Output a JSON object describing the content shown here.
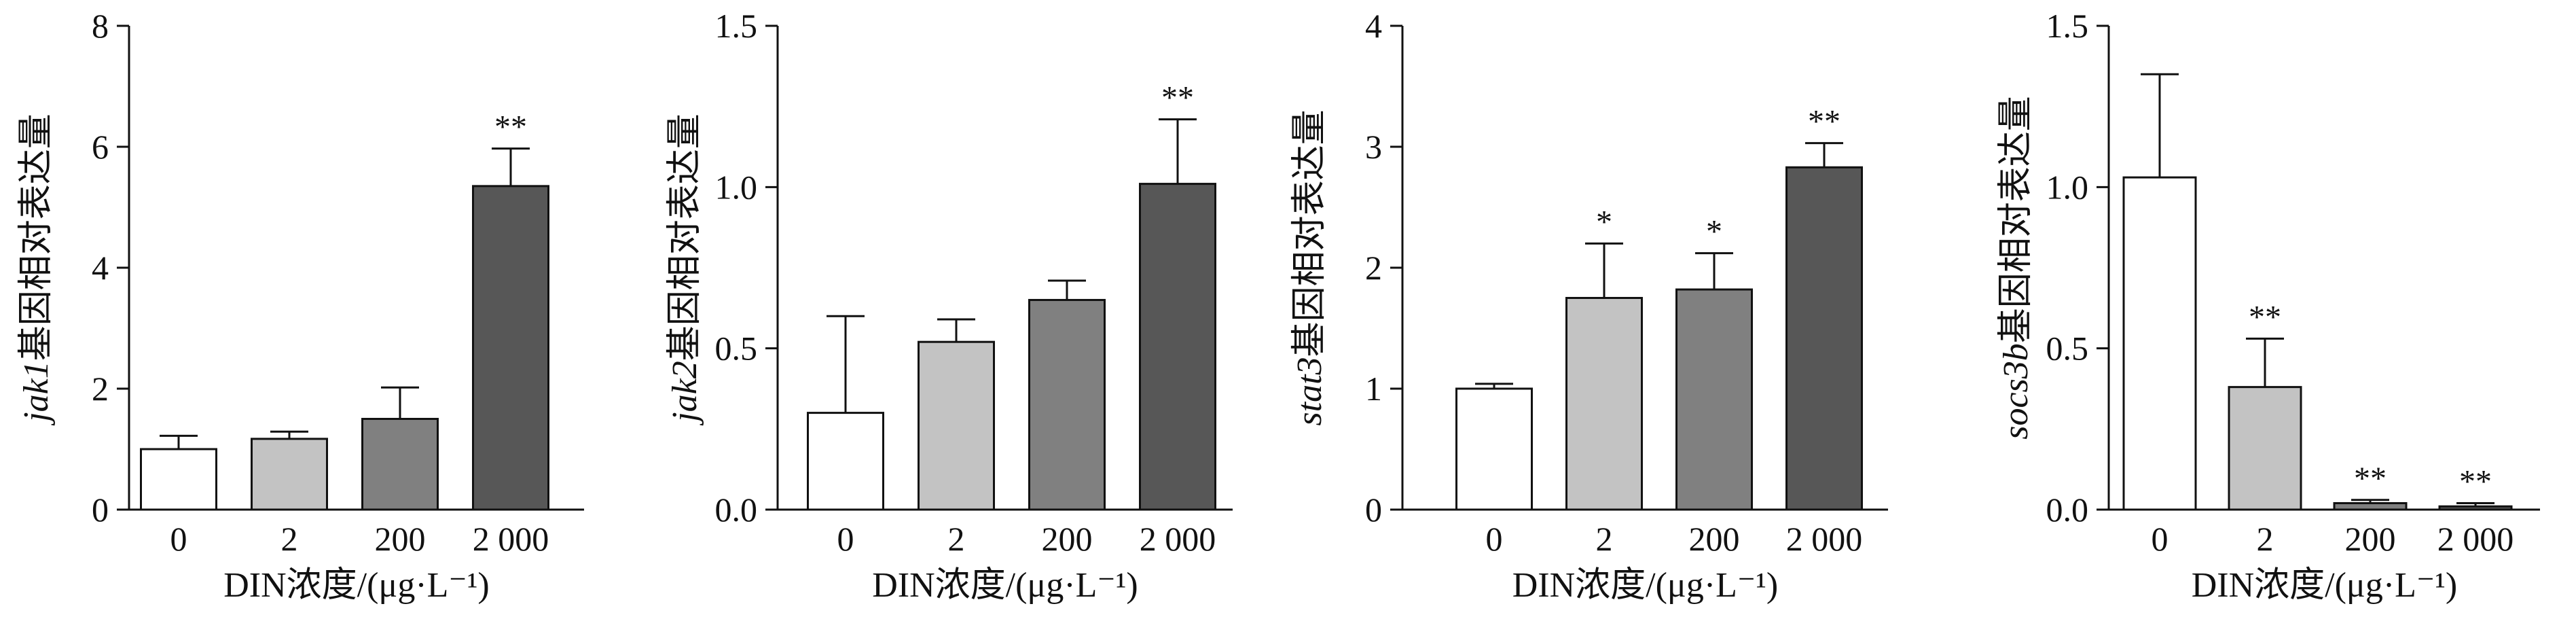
{
  "figure": {
    "x_axis_label": "DIN浓度/(μg·L⁻¹)",
    "bar_colors": [
      "#ffffff",
      "#c3c3c3",
      "#808080",
      "#575757"
    ],
    "stroke_color": "#111111"
  },
  "chart_data": [
    {
      "type": "bar",
      "gene": "jak1",
      "ylabel_gene": "jak1",
      "ylabel_suffix": "基因相对表达量",
      "xlabel": "DIN浓度/(μg·L⁻¹)",
      "categories": [
        "0",
        "2",
        "200",
        "2 000"
      ],
      "values": [
        1.0,
        1.17,
        1.5,
        5.35
      ],
      "errors": [
        0.22,
        0.12,
        0.52,
        0.62
      ],
      "significance": [
        "",
        "",
        "",
        "**"
      ],
      "ylim": [
        0,
        8
      ],
      "yticks": [
        0,
        2,
        4,
        6,
        8
      ],
      "ytick_labels": [
        "0",
        "2",
        "4",
        "6",
        "8"
      ]
    },
    {
      "type": "bar",
      "gene": "jak2",
      "ylabel_gene": "jak2",
      "ylabel_suffix": "基因相对表达量",
      "xlabel": "DIN浓度/(μg·L⁻¹)",
      "categories": [
        "0",
        "2",
        "200",
        "2 000"
      ],
      "values": [
        0.3,
        0.52,
        0.65,
        1.01
      ],
      "errors": [
        0.3,
        0.07,
        0.06,
        0.2
      ],
      "significance": [
        "",
        "",
        "",
        "**"
      ],
      "ylim": [
        0,
        1.5
      ],
      "yticks": [
        0,
        0.5,
        1.0,
        1.5
      ],
      "ytick_labels": [
        "0.0",
        "0.5",
        "1.0",
        "1.5"
      ]
    },
    {
      "type": "bar",
      "gene": "stat3",
      "ylabel_gene": "stat3",
      "ylabel_suffix": "基因相对表达量",
      "xlabel": "DIN浓度/(μg·L⁻¹)",
      "categories": [
        "0",
        "2",
        "200",
        "2 000"
      ],
      "values": [
        1.0,
        1.75,
        1.82,
        2.83
      ],
      "errors": [
        0.04,
        0.45,
        0.3,
        0.2
      ],
      "significance": [
        "",
        "*",
        "*",
        "**"
      ],
      "ylim": [
        0,
        4
      ],
      "yticks": [
        0,
        1,
        2,
        3,
        4
      ],
      "ytick_labels": [
        "0",
        "1",
        "2",
        "3",
        "4"
      ]
    },
    {
      "type": "bar",
      "gene": "socs3b",
      "ylabel_gene": "socs3b",
      "ylabel_suffix": "基因相对表达量",
      "xlabel": "DIN浓度/(μg·L⁻¹)",
      "categories": [
        "0",
        "2",
        "200",
        "2 000"
      ],
      "values": [
        1.03,
        0.38,
        0.02,
        0.01
      ],
      "errors": [
        0.32,
        0.15,
        0.01,
        0.01
      ],
      "significance": [
        "",
        "**",
        "**",
        "**"
      ],
      "ylim": [
        0,
        1.5
      ],
      "yticks": [
        0,
        0.5,
        1.0,
        1.5
      ],
      "ytick_labels": [
        "0.0",
        "0.5",
        "1.0",
        "1.5"
      ]
    }
  ]
}
